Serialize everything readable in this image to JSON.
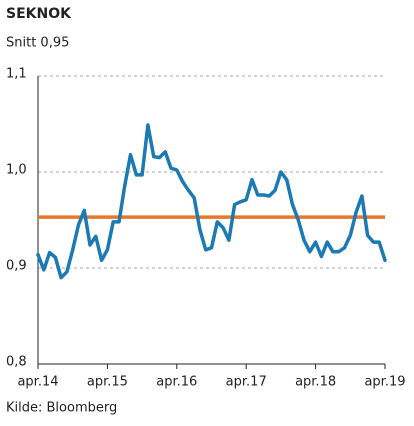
{
  "chart_data": {
    "type": "line",
    "title": "SEKNOK",
    "subtitle": "Snitt 0,95",
    "source": "Kilde: Bloomberg",
    "x": [
      "2014-04",
      "2014-05",
      "2014-06",
      "2014-07",
      "2014-08",
      "2014-09",
      "2014-10",
      "2014-11",
      "2014-12",
      "2015-01",
      "2015-02",
      "2015-03",
      "2015-04",
      "2015-05",
      "2015-06",
      "2015-07",
      "2015-08",
      "2015-09",
      "2015-10",
      "2015-11",
      "2015-12",
      "2016-01",
      "2016-02",
      "2016-03",
      "2016-04",
      "2016-05",
      "2016-06",
      "2016-07",
      "2016-08",
      "2016-09",
      "2016-10",
      "2016-11",
      "2016-12",
      "2017-01",
      "2017-02",
      "2017-03",
      "2017-04",
      "2017-05",
      "2017-06",
      "2017-07",
      "2017-08",
      "2017-09",
      "2017-10",
      "2017-11",
      "2017-12",
      "2018-01",
      "2018-02",
      "2018-03",
      "2018-04",
      "2018-05",
      "2018-06",
      "2018-07",
      "2018-08",
      "2018-09",
      "2018-10",
      "2018-11",
      "2018-12",
      "2019-01",
      "2019-02",
      "2019-03",
      "2019-04"
    ],
    "series": [
      {
        "name": "SEKNOK",
        "color": "#1b7ab4",
        "values": [
          0.914,
          0.898,
          0.916,
          0.911,
          0.89,
          0.896,
          0.919,
          0.945,
          0.96,
          0.924,
          0.933,
          0.908,
          0.919,
          0.948,
          0.948,
          0.986,
          1.018,
          0.997,
          0.997,
          1.049,
          1.016,
          1.015,
          1.021,
          1.004,
          1.002,
          0.99,
          0.981,
          0.973,
          0.94,
          0.919,
          0.921,
          0.948,
          0.942,
          0.929,
          0.966,
          0.969,
          0.971,
          0.992,
          0.976,
          0.976,
          0.975,
          0.981,
          1.0,
          0.992,
          0.966,
          0.95,
          0.929,
          0.917,
          0.927,
          0.912,
          0.927,
          0.917,
          0.917,
          0.921,
          0.934,
          0.958,
          0.975,
          0.934,
          0.927,
          0.927,
          0.908
        ]
      }
    ],
    "reference_line": {
      "value": 0.953,
      "color": "#e8772e"
    },
    "xlim": [
      "2014-04",
      "2019-04"
    ],
    "xticks": [
      {
        "value": "2014-04",
        "label": "apr.14"
      },
      {
        "value": "2015-04",
        "label": "apr.15"
      },
      {
        "value": "2016-04",
        "label": "apr.16"
      },
      {
        "value": "2017-04",
        "label": "apr.17"
      },
      {
        "value": "2018-04",
        "label": "apr.18"
      },
      {
        "value": "2019-04",
        "label": "apr.19"
      }
    ],
    "ylim": [
      0.8,
      1.1
    ],
    "yticks": [
      {
        "value": 0.8,
        "label": "0,8"
      },
      {
        "value": 0.9,
        "label": "0,9"
      },
      {
        "value": 1.0,
        "label": "1,0"
      },
      {
        "value": 1.1,
        "label": "1,1"
      }
    ],
    "grid": true
  }
}
